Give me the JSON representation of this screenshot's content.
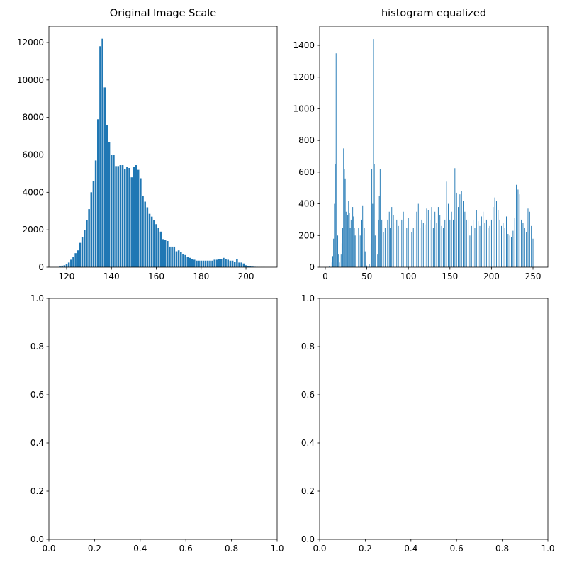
{
  "chart_data": [
    {
      "type": "bar",
      "title": "Original Image Scale",
      "color": "#1f77b4",
      "x": [
        117,
        118,
        119,
        120,
        121,
        122,
        123,
        124,
        125,
        126,
        127,
        128,
        129,
        130,
        131,
        132,
        133,
        134,
        135,
        136,
        137,
        138,
        139,
        140,
        141,
        142,
        143,
        144,
        145,
        146,
        147,
        148,
        149,
        150,
        151,
        152,
        153,
        154,
        155,
        156,
        157,
        158,
        159,
        160,
        161,
        162,
        163,
        164,
        165,
        166,
        167,
        168,
        169,
        170,
        171,
        172,
        173,
        174,
        175,
        176,
        177,
        178,
        179,
        180,
        181,
        182,
        183,
        184,
        185,
        186,
        187,
        188,
        189,
        190,
        191,
        192,
        193,
        194,
        195,
        196,
        197,
        198,
        199,
        200,
        201,
        202,
        203,
        204,
        205,
        206,
        207,
        208
      ],
      "values": [
        50,
        80,
        100,
        150,
        250,
        400,
        550,
        750,
        900,
        1300,
        1600,
        2000,
        2500,
        3100,
        4000,
        4600,
        5700,
        7900,
        11800,
        12200,
        9600,
        7600,
        6700,
        6000,
        6000,
        5400,
        5400,
        5450,
        5450,
        5250,
        5350,
        5300,
        4800,
        5350,
        5450,
        5200,
        4750,
        3800,
        3500,
        3200,
        2850,
        2700,
        2500,
        2300,
        2100,
        1900,
        1500,
        1450,
        1400,
        1100,
        1100,
        1100,
        850,
        900,
        800,
        700,
        650,
        550,
        500,
        450,
        400,
        350,
        350,
        350,
        350,
        350,
        350,
        350,
        350,
        400,
        400,
        450,
        450,
        500,
        450,
        400,
        350,
        350,
        300,
        450,
        250,
        250,
        200,
        100,
        50,
        50,
        30,
        20,
        10,
        5,
        5,
        5
      ],
      "xlim": [
        112.1,
        213.9
      ],
      "ylim": [
        0,
        12870
      ],
      "xticks": [
        120,
        140,
        160,
        180,
        200
      ],
      "yticks": [
        0,
        2000,
        4000,
        6000,
        8000,
        10000,
        12000
      ]
    },
    {
      "type": "bar",
      "title": "histogram equalized",
      "color": "#1f77b4",
      "x": [
        5,
        8,
        9,
        10,
        11,
        12,
        13,
        15,
        16,
        17,
        19,
        20,
        21,
        22,
        23,
        24,
        25,
        26,
        27,
        28,
        29,
        30,
        31,
        33,
        34,
        35,
        36,
        38,
        40,
        42,
        44,
        45,
        47,
        48,
        49,
        50,
        53,
        55,
        56,
        57,
        58,
        59,
        60,
        61,
        63,
        64,
        65,
        66,
        67,
        68,
        70,
        72,
        73,
        75,
        77,
        78,
        79,
        80,
        82,
        84,
        86,
        88,
        90,
        92,
        94,
        96,
        98,
        100,
        102,
        104,
        106,
        108,
        110,
        112,
        114,
        116,
        118,
        120,
        122,
        124,
        126,
        128,
        130,
        132,
        134,
        136,
        138,
        140,
        142,
        144,
        146,
        148,
        150,
        152,
        154,
        156,
        158,
        160,
        162,
        164,
        166,
        168,
        170,
        172,
        174,
        176,
        178,
        180,
        182,
        184,
        186,
        188,
        190,
        192,
        194,
        196,
        198,
        200,
        202,
        204,
        206,
        208,
        210,
        212,
        214,
        216,
        218,
        220,
        222,
        224,
        226,
        228,
        230,
        232,
        234,
        236,
        238,
        240,
        242,
        244,
        246,
        248,
        250
      ],
      "values": [
        5,
        30,
        70,
        180,
        400,
        650,
        1350,
        200,
        80,
        30,
        80,
        150,
        250,
        750,
        620,
        560,
        350,
        300,
        330,
        420,
        340,
        250,
        300,
        380,
        320,
        250,
        200,
        390,
        250,
        200,
        300,
        390,
        250,
        100,
        30,
        10,
        20,
        150,
        620,
        400,
        1440,
        650,
        200,
        100,
        80,
        300,
        450,
        620,
        480,
        300,
        220,
        250,
        370,
        300,
        350,
        250,
        300,
        380,
        330,
        280,
        300,
        260,
        250,
        300,
        350,
        320,
        250,
        310,
        280,
        220,
        250,
        300,
        350,
        400,
        250,
        300,
        280,
        270,
        370,
        360,
        300,
        380,
        250,
        350,
        280,
        380,
        330,
        260,
        250,
        300,
        540,
        400,
        300,
        350,
        300,
        625,
        470,
        380,
        460,
        480,
        420,
        350,
        300,
        300,
        200,
        260,
        300,
        250,
        360,
        290,
        260,
        320,
        350,
        280,
        300,
        250,
        260,
        300,
        380,
        440,
        420,
        360,
        300,
        260,
        280,
        250,
        320,
        210,
        200,
        190,
        230,
        310,
        520,
        490,
        460,
        300,
        280,
        250,
        220,
        370,
        350,
        260,
        180
      ],
      "xlim": [
        -6.8,
        267.9
      ],
      "ylim": [
        0,
        1521
      ],
      "xticks": [
        0,
        50,
        100,
        150,
        200,
        250
      ],
      "yticks": [
        0,
        200,
        400,
        600,
        800,
        1000,
        1200,
        1400
      ]
    },
    {
      "type": "empty",
      "xlim": [
        0,
        1
      ],
      "ylim": [
        0,
        1
      ],
      "xticks": [
        {
          "value": 0,
          "label": "0.0"
        },
        {
          "value": 0.2,
          "label": "0.2"
        },
        {
          "value": 0.4,
          "label": "0.4"
        },
        {
          "value": 0.6,
          "label": "0.6"
        },
        {
          "value": 0.8,
          "label": "0.8"
        },
        {
          "value": 1,
          "label": "1.0"
        }
      ],
      "yticks": [
        {
          "value": 0,
          "label": "0.0"
        },
        {
          "value": 0.2,
          "label": "0.2"
        },
        {
          "value": 0.4,
          "label": "0.4"
        },
        {
          "value": 0.6,
          "label": "0.6"
        },
        {
          "value": 0.8,
          "label": "0.8"
        },
        {
          "value": 1,
          "label": "1.0"
        }
      ]
    },
    {
      "type": "empty",
      "xlim": [
        0,
        1
      ],
      "ylim": [
        0,
        1
      ],
      "xticks": [
        {
          "value": 0,
          "label": "0.0"
        },
        {
          "value": 0.2,
          "label": "0.2"
        },
        {
          "value": 0.4,
          "label": "0.4"
        },
        {
          "value": 0.6,
          "label": "0.6"
        },
        {
          "value": 0.8,
          "label": "0.8"
        },
        {
          "value": 1,
          "label": "1.0"
        }
      ],
      "yticks": [
        {
          "value": 0,
          "label": "0.0"
        },
        {
          "value": 0.2,
          "label": "0.2"
        },
        {
          "value": 0.4,
          "label": "0.4"
        },
        {
          "value": 0.6,
          "label": "0.6"
        },
        {
          "value": 0.8,
          "label": "0.8"
        },
        {
          "value": 1,
          "label": "1.0"
        }
      ]
    }
  ]
}
